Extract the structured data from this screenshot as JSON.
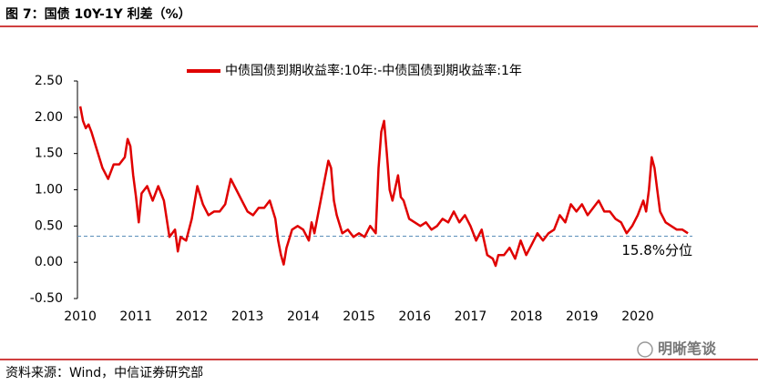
{
  "chart_data": {
    "type": "line",
    "title": "图 7：国债 10Y-1Y 利差（%）",
    "source": "资料来源：Wind，中信证券研究部",
    "watermark": "明晰笔谈",
    "x": [
      2010.0,
      2010.05,
      2010.1,
      2010.15,
      2010.2,
      2010.3,
      2010.4,
      2010.5,
      2010.6,
      2010.7,
      2010.8,
      2010.85,
      2010.9,
      2010.95,
      2011.0,
      2011.05,
      2011.1,
      2011.2,
      2011.3,
      2011.4,
      2011.5,
      2011.6,
      2011.7,
      2011.75,
      2011.8,
      2011.9,
      2012.0,
      2012.1,
      2012.2,
      2012.3,
      2012.4,
      2012.5,
      2012.6,
      2012.7,
      2012.8,
      2012.9,
      2013.0,
      2013.1,
      2013.2,
      2013.3,
      2013.4,
      2013.5,
      2013.55,
      2013.6,
      2013.65,
      2013.7,
      2013.8,
      2013.9,
      2014.0,
      2014.1,
      2014.15,
      2014.2,
      2014.3,
      2014.4,
      2014.45,
      2014.5,
      2014.55,
      2014.6,
      2014.7,
      2014.8,
      2014.9,
      2015.0,
      2015.1,
      2015.2,
      2015.3,
      2015.35,
      2015.4,
      2015.45,
      2015.5,
      2015.55,
      2015.6,
      2015.7,
      2015.75,
      2015.8,
      2015.9,
      2016.0,
      2016.1,
      2016.2,
      2016.3,
      2016.4,
      2016.5,
      2016.6,
      2016.7,
      2016.8,
      2016.9,
      2017.0,
      2017.1,
      2017.2,
      2017.3,
      2017.4,
      2017.45,
      2017.5,
      2017.6,
      2017.7,
      2017.8,
      2017.9,
      2018.0,
      2018.1,
      2018.2,
      2018.3,
      2018.4,
      2018.5,
      2018.6,
      2018.7,
      2018.8,
      2018.9,
      2019.0,
      2019.1,
      2019.2,
      2019.3,
      2019.4,
      2019.5,
      2019.6,
      2019.7,
      2019.8,
      2019.9,
      2020.0,
      2020.1,
      2020.15,
      2020.2,
      2020.25,
      2020.3,
      2020.35,
      2020.4,
      2020.5,
      2020.6,
      2020.7,
      2020.8,
      2020.9
    ],
    "series": [
      {
        "name": "中债国债到期收益率:10年:-中债国债到期收益率:1年",
        "color": "#e00000",
        "values": [
          2.15,
          1.95,
          1.85,
          1.9,
          1.8,
          1.55,
          1.3,
          1.15,
          1.35,
          1.35,
          1.45,
          1.7,
          1.6,
          1.2,
          0.9,
          0.55,
          0.95,
          1.05,
          0.85,
          1.05,
          0.85,
          0.35,
          0.45,
          0.15,
          0.35,
          0.3,
          0.6,
          1.05,
          0.8,
          0.65,
          0.7,
          0.7,
          0.8,
          1.15,
          1.0,
          0.85,
          0.7,
          0.65,
          0.75,
          0.75,
          0.85,
          0.6,
          0.3,
          0.1,
          -0.03,
          0.2,
          0.45,
          0.5,
          0.45,
          0.3,
          0.55,
          0.4,
          0.8,
          1.2,
          1.4,
          1.3,
          0.85,
          0.65,
          0.4,
          0.45,
          0.35,
          0.4,
          0.35,
          0.5,
          0.4,
          1.3,
          1.8,
          1.95,
          1.5,
          1.0,
          0.85,
          1.2,
          0.9,
          0.85,
          0.6,
          0.55,
          0.5,
          0.55,
          0.45,
          0.5,
          0.6,
          0.55,
          0.7,
          0.55,
          0.65,
          0.5,
          0.3,
          0.45,
          0.1,
          0.05,
          -0.05,
          0.1,
          0.1,
          0.2,
          0.05,
          0.3,
          0.1,
          0.25,
          0.4,
          0.3,
          0.4,
          0.45,
          0.65,
          0.55,
          0.8,
          0.7,
          0.8,
          0.65,
          0.75,
          0.85,
          0.7,
          0.7,
          0.6,
          0.55,
          0.4,
          0.5,
          0.65,
          0.85,
          0.7,
          1.0,
          1.45,
          1.3,
          1.0,
          0.7,
          0.55,
          0.5,
          0.45,
          0.45,
          0.4
        ]
      }
    ],
    "xlim": [
      2009.95,
      2020.98
    ],
    "xticks": [
      2010,
      2011,
      2012,
      2013,
      2014,
      2015,
      2016,
      2017,
      2018,
      2019,
      2020
    ],
    "ylim": [
      -0.5,
      2.5
    ],
    "yticks": [
      {
        "value": 2.5,
        "label": "2.50"
      },
      {
        "value": 2.0,
        "label": "2.00"
      },
      {
        "value": 1.5,
        "label": "1.50"
      },
      {
        "value": 1.0,
        "label": "1.00"
      },
      {
        "value": 0.5,
        "label": "0.50"
      },
      {
        "value": 0.0,
        "label": "0.00"
      },
      {
        "value": -0.5,
        "label": "-0.50"
      }
    ],
    "reference_line": {
      "value": 0.36,
      "label": "15.8%分位",
      "color": "#5b8fb9"
    },
    "legend": "top"
  }
}
